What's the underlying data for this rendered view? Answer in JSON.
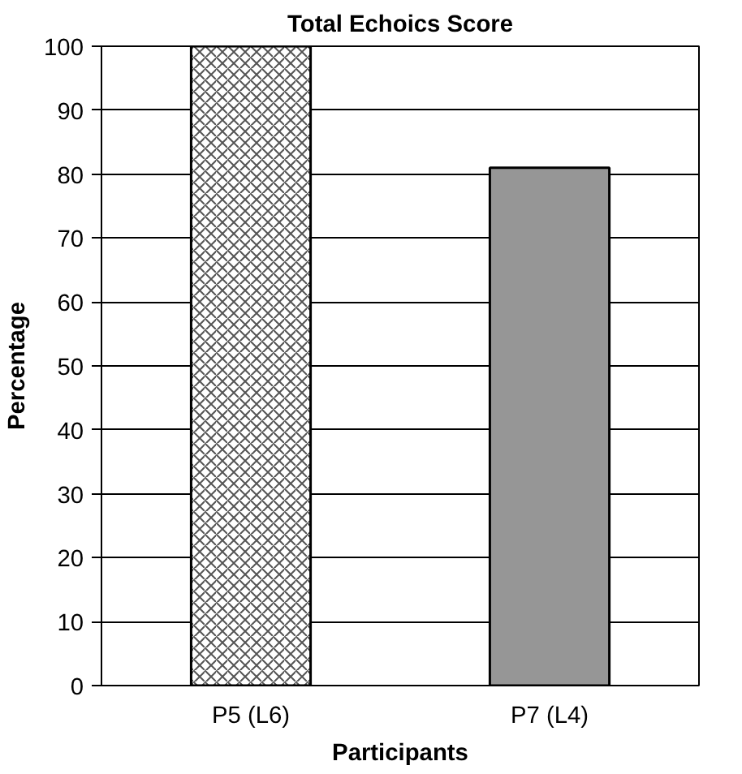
{
  "chart_data": {
    "type": "bar",
    "title": "Total Echoics Score",
    "xlabel": "Participants",
    "ylabel": "Percentage",
    "categories": [
      "P5 (L6)",
      "P7 (L4)"
    ],
    "values": [
      100,
      81
    ],
    "colors": [
      "#ffffff",
      "#969696"
    ],
    "ylim": [
      0,
      100
    ],
    "yticks": [
      0,
      10,
      20,
      30,
      40,
      50,
      60,
      70,
      80,
      90,
      100
    ],
    "grid": "y"
  }
}
